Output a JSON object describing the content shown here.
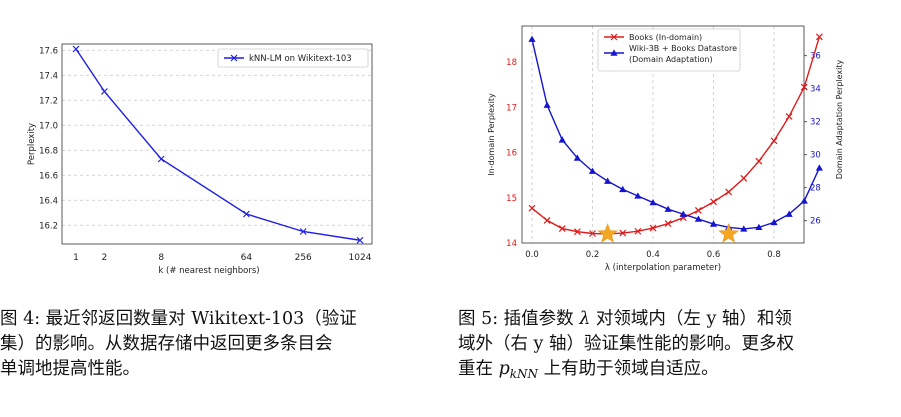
{
  "chart_data": [
    {
      "type": "line",
      "x_categories": [
        "1",
        "2",
        "8",
        "64",
        "256",
        "1024"
      ],
      "series": [
        {
          "name": "kNN-LM on Wikitext-103",
          "color": "#1f1fe6",
          "marker": "x",
          "values": [
            17.61,
            17.27,
            16.73,
            16.29,
            16.15,
            16.08
          ]
        }
      ],
      "xlabel": "k (# nearest neighbors)",
      "ylabel": "Perplexity",
      "ylim": [
        16.05,
        17.65
      ],
      "yticks": [
        "16.2",
        "16.4",
        "16.6",
        "16.8",
        "17.0",
        "17.2",
        "17.4",
        "17.6"
      ],
      "grid": "horizontal dashed",
      "legend": "top-right"
    },
    {
      "type": "line",
      "x": [
        0.0,
        0.05,
        0.1,
        0.15,
        0.2,
        0.25,
        0.3,
        0.35,
        0.4,
        0.45,
        0.5,
        0.55,
        0.6,
        0.65,
        0.7,
        0.75,
        0.8,
        0.85,
        0.9,
        0.95
      ],
      "series": [
        {
          "name": "Books (In-domain)",
          "axis": "left",
          "color": "#e01a1a",
          "marker": "x",
          "values": [
            14.77,
            14.5,
            14.32,
            14.25,
            14.21,
            14.2,
            14.22,
            14.26,
            14.33,
            14.43,
            14.56,
            14.72,
            14.91,
            15.13,
            15.43,
            15.81,
            16.26,
            16.8,
            17.45,
            18.56
          ]
        },
        {
          "name": "Wiki-3B + Books Datastore\n(Domain Adaptation)",
          "axis": "right",
          "color": "#1515d0",
          "marker": "triangle",
          "values": [
            37.0,
            33.0,
            30.9,
            29.8,
            29.0,
            28.4,
            27.9,
            27.5,
            27.1,
            26.7,
            26.4,
            26.1,
            25.8,
            25.6,
            25.5,
            25.6,
            25.9,
            26.4,
            27.2,
            29.2
          ]
        }
      ],
      "stars": [
        {
          "x": 0.25,
          "y": 14.2,
          "axis": "left"
        },
        {
          "x": 0.65,
          "y": 14.2,
          "axis": "left"
        }
      ],
      "xlabel": "λ (interpolation parameter)",
      "ylabel_left": "In-domain Perplexity",
      "ylabel_right": "Domain Adaptation Perplexity",
      "xlim": [
        -0.05,
        1.0
      ],
      "xticks": [
        "0.0",
        "0.2",
        "0.4",
        "0.6",
        "0.8"
      ],
      "ylim_left": [
        14.0,
        18.8
      ],
      "yticks_left": [
        "14",
        "15",
        "16",
        "17",
        "18"
      ],
      "ylim_right": [
        24.65,
        37.8
      ],
      "yticks_right": [
        "26",
        "28",
        "30",
        "32",
        "34",
        "36"
      ],
      "grid": "vertical dashed",
      "legend": "top-center"
    }
  ],
  "caption_left": {
    "line1": "图 4: 最近邻返回数量对 Wikitext-103（验证",
    "line2": "集）的影响。从数据存储中返回更多条目会",
    "line3": "单调地提高性能。"
  },
  "caption_right": {
    "line1_a": "图 5: 插值参数 ",
    "lambda": "λ",
    "line1_b": " 对领域内（左 y 轴）和领",
    "line2": "域外（右 y 轴）验证集性能的影响。更多权",
    "line3_a": "重在 ",
    "p": "p",
    "p_sub": "kNN",
    "line3_b": " 上有助于领域自适应。"
  }
}
